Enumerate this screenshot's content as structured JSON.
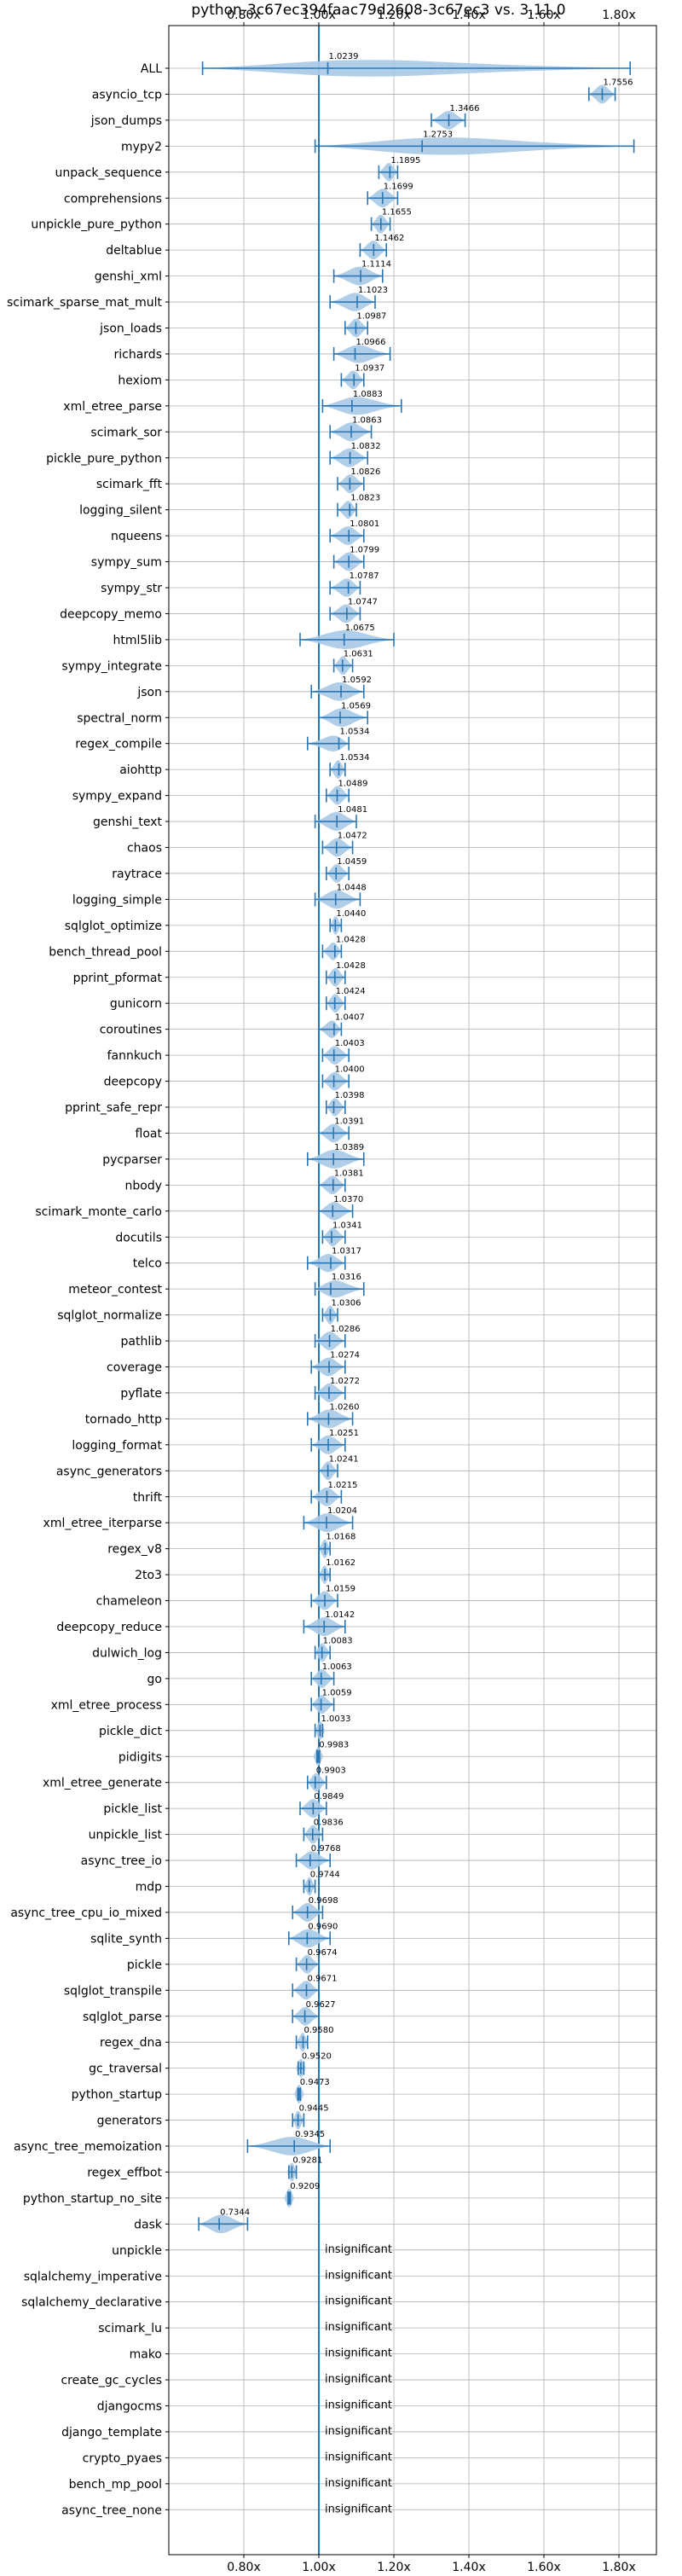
{
  "chart_data": {
    "type": "violin",
    "title": "python-3c67ec394faac79d2608-3c67ec3 vs. 3.11.0",
    "xlabel": "",
    "ylabel": "",
    "xlim": [
      0.6,
      1.9
    ],
    "xticks": [
      0.8,
      1.0,
      1.2,
      1.4,
      1.6,
      1.8
    ],
    "xtick_labels": [
      "0.80x",
      "1.00x",
      "1.20x",
      "1.40x",
      "1.60x",
      "1.80x"
    ],
    "grid": true,
    "reference_line": 1.0,
    "colors": {
      "line": "#2a77b4",
      "violin": "#a9c9e6"
    },
    "insignificant_label": "insignificant",
    "benchmarks": [
      {
        "name": "ALL",
        "value": 1.0239,
        "label": "1.0239",
        "min": 0.69,
        "max": 1.83
      },
      {
        "name": "asyncio_tcp",
        "value": 1.7556,
        "label": "1.7556",
        "min": 1.72,
        "max": 1.79
      },
      {
        "name": "json_dumps",
        "value": 1.3466,
        "label": "1.3466",
        "min": 1.3,
        "max": 1.39
      },
      {
        "name": "mypy2",
        "value": 1.2753,
        "label": "1.2753",
        "min": 0.99,
        "max": 1.84
      },
      {
        "name": "unpack_sequence",
        "value": 1.1895,
        "label": "1.1895",
        "min": 1.16,
        "max": 1.21
      },
      {
        "name": "comprehensions",
        "value": 1.1699,
        "label": "1.1699",
        "min": 1.13,
        "max": 1.21
      },
      {
        "name": "unpickle_pure_python",
        "value": 1.1655,
        "label": "1.1655",
        "min": 1.14,
        "max": 1.19
      },
      {
        "name": "deltablue",
        "value": 1.1462,
        "label": "1.1462",
        "min": 1.11,
        "max": 1.18
      },
      {
        "name": "genshi_xml",
        "value": 1.1114,
        "label": "1.1114",
        "min": 1.04,
        "max": 1.17
      },
      {
        "name": "scimark_sparse_mat_mult",
        "value": 1.1023,
        "label": "1.1023",
        "min": 1.03,
        "max": 1.15
      },
      {
        "name": "json_loads",
        "value": 1.0987,
        "label": "1.0987",
        "min": 1.07,
        "max": 1.13
      },
      {
        "name": "richards",
        "value": 1.0966,
        "label": "1.0966",
        "min": 1.04,
        "max": 1.19
      },
      {
        "name": "hexiom",
        "value": 1.0937,
        "label": "1.0937",
        "min": 1.06,
        "max": 1.12
      },
      {
        "name": "xml_etree_parse",
        "value": 1.0883,
        "label": "1.0883",
        "min": 1.01,
        "max": 1.22
      },
      {
        "name": "scimark_sor",
        "value": 1.0863,
        "label": "1.0863",
        "min": 1.03,
        "max": 1.14
      },
      {
        "name": "pickle_pure_python",
        "value": 1.0832,
        "label": "1.0832",
        "min": 1.03,
        "max": 1.13
      },
      {
        "name": "scimark_fft",
        "value": 1.0826,
        "label": "1.0826",
        "min": 1.05,
        "max": 1.12
      },
      {
        "name": "logging_silent",
        "value": 1.0823,
        "label": "1.0823",
        "min": 1.05,
        "max": 1.1
      },
      {
        "name": "nqueens",
        "value": 1.0801,
        "label": "1.0801",
        "min": 1.03,
        "max": 1.12
      },
      {
        "name": "sympy_sum",
        "value": 1.0799,
        "label": "1.0799",
        "min": 1.04,
        "max": 1.12
      },
      {
        "name": "sympy_str",
        "value": 1.0787,
        "label": "1.0787",
        "min": 1.03,
        "max": 1.11
      },
      {
        "name": "deepcopy_memo",
        "value": 1.0747,
        "label": "1.0747",
        "min": 1.03,
        "max": 1.11
      },
      {
        "name": "html5lib",
        "value": 1.0675,
        "label": "1.0675",
        "min": 0.95,
        "max": 1.2
      },
      {
        "name": "sympy_integrate",
        "value": 1.0631,
        "label": "1.0631",
        "min": 1.04,
        "max": 1.09
      },
      {
        "name": "json",
        "value": 1.0592,
        "label": "1.0592",
        "min": 0.98,
        "max": 1.12
      },
      {
        "name": "spectral_norm",
        "value": 1.0569,
        "label": "1.0569",
        "min": 1.0,
        "max": 1.13
      },
      {
        "name": "regex_compile",
        "value": 1.0534,
        "label": "1.0534",
        "min": 0.97,
        "max": 1.08
      },
      {
        "name": "aiohttp",
        "value": 1.0534,
        "label": "1.0534",
        "min": 1.03,
        "max": 1.07
      },
      {
        "name": "sympy_expand",
        "value": 1.0489,
        "label": "1.0489",
        "min": 1.02,
        "max": 1.08
      },
      {
        "name": "genshi_text",
        "value": 1.0481,
        "label": "1.0481",
        "min": 0.99,
        "max": 1.1
      },
      {
        "name": "chaos",
        "value": 1.0472,
        "label": "1.0472",
        "min": 1.01,
        "max": 1.09
      },
      {
        "name": "raytrace",
        "value": 1.0459,
        "label": "1.0459",
        "min": 1.02,
        "max": 1.08
      },
      {
        "name": "logging_simple",
        "value": 1.0448,
        "label": "1.0448",
        "min": 0.99,
        "max": 1.11
      },
      {
        "name": "sqlglot_optimize",
        "value": 1.044,
        "label": "1.0440",
        "min": 1.03,
        "max": 1.06
      },
      {
        "name": "bench_thread_pool",
        "value": 1.0428,
        "label": "1.0428",
        "min": 1.01,
        "max": 1.06
      },
      {
        "name": "pprint_pformat",
        "value": 1.0428,
        "label": "1.0428",
        "min": 1.02,
        "max": 1.07
      },
      {
        "name": "gunicorn",
        "value": 1.0424,
        "label": "1.0424",
        "min": 1.02,
        "max": 1.07
      },
      {
        "name": "coroutines",
        "value": 1.0407,
        "label": "1.0407",
        "min": 1.0,
        "max": 1.06
      },
      {
        "name": "fannkuch",
        "value": 1.0403,
        "label": "1.0403",
        "min": 1.01,
        "max": 1.08
      },
      {
        "name": "deepcopy",
        "value": 1.04,
        "label": "1.0400",
        "min": 1.01,
        "max": 1.08
      },
      {
        "name": "pprint_safe_repr",
        "value": 1.0398,
        "label": "1.0398",
        "min": 1.02,
        "max": 1.07
      },
      {
        "name": "float",
        "value": 1.0391,
        "label": "1.0391",
        "min": 1.0,
        "max": 1.08
      },
      {
        "name": "pycparser",
        "value": 1.0389,
        "label": "1.0389",
        "min": 0.97,
        "max": 1.12
      },
      {
        "name": "nbody",
        "value": 1.0381,
        "label": "1.0381",
        "min": 1.0,
        "max": 1.07
      },
      {
        "name": "scimark_monte_carlo",
        "value": 1.037,
        "label": "1.0370",
        "min": 1.0,
        "max": 1.09
      },
      {
        "name": "docutils",
        "value": 1.0341,
        "label": "1.0341",
        "min": 1.01,
        "max": 1.07
      },
      {
        "name": "telco",
        "value": 1.0317,
        "label": "1.0317",
        "min": 0.97,
        "max": 1.07
      },
      {
        "name": "meteor_contest",
        "value": 1.0316,
        "label": "1.0316",
        "min": 0.99,
        "max": 1.12
      },
      {
        "name": "sqlglot_normalize",
        "value": 1.0306,
        "label": "1.0306",
        "min": 1.01,
        "max": 1.05
      },
      {
        "name": "pathlib",
        "value": 1.0286,
        "label": "1.0286",
        "min": 0.99,
        "max": 1.07
      },
      {
        "name": "coverage",
        "value": 1.0274,
        "label": "1.0274",
        "min": 0.98,
        "max": 1.07
      },
      {
        "name": "pyflate",
        "value": 1.0272,
        "label": "1.0272",
        "min": 0.99,
        "max": 1.07
      },
      {
        "name": "tornado_http",
        "value": 1.026,
        "label": "1.0260",
        "min": 0.97,
        "max": 1.09
      },
      {
        "name": "logging_format",
        "value": 1.0251,
        "label": "1.0251",
        "min": 0.98,
        "max": 1.07
      },
      {
        "name": "async_generators",
        "value": 1.0241,
        "label": "1.0241",
        "min": 1.0,
        "max": 1.05
      },
      {
        "name": "thrift",
        "value": 1.0215,
        "label": "1.0215",
        "min": 0.98,
        "max": 1.06
      },
      {
        "name": "xml_etree_iterparse",
        "value": 1.0204,
        "label": "1.0204",
        "min": 0.96,
        "max": 1.09
      },
      {
        "name": "regex_v8",
        "value": 1.0168,
        "label": "1.0168",
        "min": 1.0,
        "max": 1.03
      },
      {
        "name": "2to3",
        "value": 1.0162,
        "label": "1.0162",
        "min": 1.0,
        "max": 1.03
      },
      {
        "name": "chameleon",
        "value": 1.0159,
        "label": "1.0159",
        "min": 0.98,
        "max": 1.05
      },
      {
        "name": "deepcopy_reduce",
        "value": 1.0142,
        "label": "1.0142",
        "min": 0.96,
        "max": 1.07
      },
      {
        "name": "dulwich_log",
        "value": 1.0083,
        "label": "1.0083",
        "min": 0.99,
        "max": 1.03
      },
      {
        "name": "go",
        "value": 1.0063,
        "label": "1.0063",
        "min": 0.98,
        "max": 1.04
      },
      {
        "name": "xml_etree_process",
        "value": 1.0059,
        "label": "1.0059",
        "min": 0.98,
        "max": 1.04
      },
      {
        "name": "pickle_dict",
        "value": 1.0033,
        "label": "1.0033",
        "min": 0.99,
        "max": 1.01
      },
      {
        "name": "pidigits",
        "value": 0.9983,
        "label": "0.9983",
        "min": 0.995,
        "max": 1.002
      },
      {
        "name": "xml_etree_generate",
        "value": 0.9903,
        "label": "0.9903",
        "min": 0.97,
        "max": 1.02
      },
      {
        "name": "pickle_list",
        "value": 0.9849,
        "label": "0.9849",
        "min": 0.95,
        "max": 1.02
      },
      {
        "name": "unpickle_list",
        "value": 0.9836,
        "label": "0.9836",
        "min": 0.96,
        "max": 1.01
      },
      {
        "name": "async_tree_io",
        "value": 0.9768,
        "label": "0.9768",
        "min": 0.94,
        "max": 1.03
      },
      {
        "name": "mdp",
        "value": 0.9744,
        "label": "0.9744",
        "min": 0.96,
        "max": 0.99
      },
      {
        "name": "async_tree_cpu_io_mixed",
        "value": 0.9698,
        "label": "0.9698",
        "min": 0.93,
        "max": 1.01
      },
      {
        "name": "sqlite_synth",
        "value": 0.969,
        "label": "0.9690",
        "min": 0.92,
        "max": 1.03
      },
      {
        "name": "pickle",
        "value": 0.9674,
        "label": "0.9674",
        "min": 0.94,
        "max": 1.0
      },
      {
        "name": "sqlglot_transpile",
        "value": 0.9671,
        "label": "0.9671",
        "min": 0.93,
        "max": 1.0
      },
      {
        "name": "sqlglot_parse",
        "value": 0.9627,
        "label": "0.9627",
        "min": 0.93,
        "max": 1.0
      },
      {
        "name": "regex_dna",
        "value": 0.958,
        "label": "0.9580",
        "min": 0.94,
        "max": 0.97
      },
      {
        "name": "gc_traversal",
        "value": 0.952,
        "label": "0.9520",
        "min": 0.945,
        "max": 0.96
      },
      {
        "name": "python_startup",
        "value": 0.9473,
        "label": "0.9473",
        "min": 0.944,
        "max": 0.951
      },
      {
        "name": "generators",
        "value": 0.9445,
        "label": "0.9445",
        "min": 0.93,
        "max": 0.96
      },
      {
        "name": "async_tree_memoization",
        "value": 0.9345,
        "label": "0.9345",
        "min": 0.81,
        "max": 1.03
      },
      {
        "name": "regex_effbot",
        "value": 0.9281,
        "label": "0.9281",
        "min": 0.92,
        "max": 0.94
      },
      {
        "name": "python_startup_no_site",
        "value": 0.9209,
        "label": "0.9209",
        "min": 0.918,
        "max": 0.924
      },
      {
        "name": "dask",
        "value": 0.7344,
        "label": "0.7344",
        "min": 0.68,
        "max": 0.81
      },
      {
        "name": "unpickle",
        "insignificant": true
      },
      {
        "name": "sqlalchemy_imperative",
        "insignificant": true
      },
      {
        "name": "sqlalchemy_declarative",
        "insignificant": true
      },
      {
        "name": "scimark_lu",
        "insignificant": true
      },
      {
        "name": "mako",
        "insignificant": true
      },
      {
        "name": "create_gc_cycles",
        "insignificant": true
      },
      {
        "name": "djangocms",
        "insignificant": true
      },
      {
        "name": "django_template",
        "insignificant": true
      },
      {
        "name": "crypto_pyaes",
        "insignificant": true
      },
      {
        "name": "bench_mp_pool",
        "insignificant": true
      },
      {
        "name": "async_tree_none",
        "insignificant": true
      }
    ]
  }
}
